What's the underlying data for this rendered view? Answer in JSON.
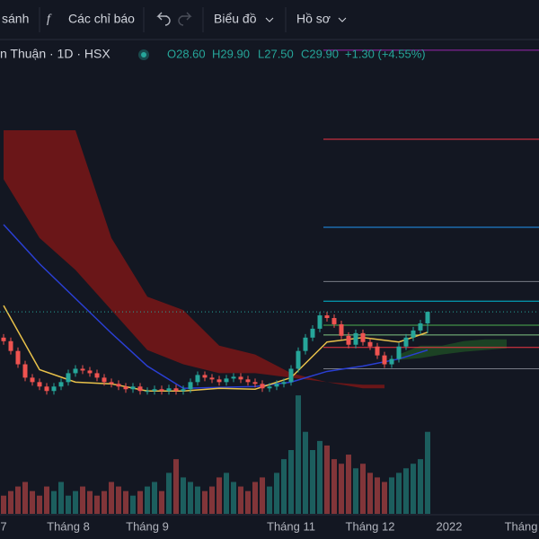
{
  "toolbar": {
    "compare": "sánh",
    "indicators": "Các chỉ báo",
    "layout": "Biểu đồ",
    "profile": "Hồ sơ"
  },
  "chart_data": {
    "type": "candlestick",
    "legend": {
      "symbol": "n Thuận · 1D · HSX",
      "open": "O28.60",
      "high": "H29.90",
      "low": "L27.50",
      "close": "C29.90",
      "change": "+1.30 (+4.55%)"
    },
    "categories": [
      "7",
      null,
      null,
      null,
      null,
      null,
      null,
      null,
      null,
      "Tháng 8",
      null,
      null,
      null,
      null,
      null,
      null,
      null,
      null,
      null,
      null,
      "Tháng 9",
      null,
      null,
      null,
      null,
      null,
      null,
      null,
      null,
      null,
      null,
      null,
      null,
      null,
      null,
      null,
      null,
      null,
      null,
      null,
      "Tháng 11",
      null,
      null,
      null,
      null,
      null,
      null,
      null,
      null,
      null,
      null,
      "Tháng 12",
      null,
      null,
      null,
      null,
      null,
      null,
      null,
      null,
      null,
      null,
      "2022",
      null,
      null,
      null,
      null,
      null,
      null,
      null,
      null,
      null,
      "Tháng"
    ],
    "open": [
      27,
      26.6,
      25.5,
      24,
      22.5,
      22,
      21.5,
      21,
      21.5,
      22,
      23,
      23.5,
      23.3,
      23,
      22.5,
      22,
      21.8,
      21.5,
      21.2,
      21.5,
      21,
      21,
      21.2,
      21,
      21.3,
      21,
      21.2,
      22,
      22.8,
      22.5,
      22.3,
      22,
      22.4,
      22.6,
      22.3,
      22,
      21.8,
      21.3,
      21.5,
      21.8,
      22,
      23.5,
      25.5,
      27,
      28,
      29.5,
      29.2,
      28.5,
      27.2,
      26.2,
      27.5,
      26.5,
      26,
      25,
      24,
      24.6,
      26,
      27,
      27.8,
      28.6,
      null,
      null,
      null,
      null,
      null,
      null,
      null,
      null,
      null,
      null,
      null,
      null,
      null
    ],
    "high": [
      27.4,
      27,
      25.9,
      24.4,
      22.9,
      22.4,
      21.9,
      21.9,
      22.4,
      23.4,
      23.9,
      23.9,
      23.7,
      23.4,
      22.9,
      22.4,
      22.2,
      21.9,
      21.9,
      21.9,
      21.4,
      21.6,
      21.6,
      21.7,
      21.7,
      21.6,
      22.4,
      23.2,
      23.2,
      22.9,
      22.7,
      22.8,
      23,
      23,
      22.7,
      22.4,
      22.2,
      21.9,
      22.2,
      22.4,
      23.9,
      25.9,
      27.4,
      28.4,
      29.9,
      29.9,
      29.6,
      28.9,
      27.6,
      27.9,
      27.9,
      26.9,
      26.4,
      25.4,
      25,
      26.4,
      27.4,
      28.2,
      29,
      29.9,
      null,
      null,
      null,
      null,
      null,
      null,
      null,
      null,
      null,
      null,
      null,
      null,
      null
    ],
    "low": [
      26.2,
      25.1,
      23.6,
      22.1,
      21.6,
      21.1,
      20.6,
      20.6,
      21.1,
      21.6,
      22.6,
      22.9,
      22.6,
      22.1,
      21.6,
      21.4,
      21.1,
      20.8,
      20.8,
      20.6,
      20.6,
      20.6,
      20.6,
      20.6,
      20.6,
      20.6,
      20.8,
      21.6,
      22.1,
      21.9,
      21.6,
      21.6,
      22,
      21.9,
      21.6,
      21.4,
      20.9,
      20.9,
      21.1,
      21.4,
      21.6,
      23.1,
      25.1,
      26.6,
      27.6,
      28.8,
      28.1,
      26.8,
      25.8,
      25.8,
      26.1,
      25.6,
      24.6,
      23.6,
      23.6,
      24.2,
      25.6,
      26.6,
      27.4,
      27.5,
      null,
      null,
      null,
      null,
      null,
      null,
      null,
      null,
      null,
      null,
      null,
      null,
      null
    ],
    "close": [
      26.6,
      25.5,
      24,
      22.5,
      22,
      21.5,
      21,
      21.5,
      22,
      23,
      23.5,
      23.3,
      23,
      22.5,
      22,
      21.8,
      21.5,
      21.2,
      21.5,
      21,
      21,
      21.2,
      21,
      21.3,
      21,
      21.2,
      22,
      22.8,
      22.5,
      22.3,
      22,
      22.4,
      22.6,
      22.3,
      22,
      21.8,
      21.3,
      21.5,
      21.8,
      22,
      23.5,
      25.5,
      27,
      28,
      29.5,
      29.2,
      28.5,
      27.2,
      26.2,
      27.5,
      26.5,
      26,
      25,
      24,
      24.6,
      26,
      27,
      27.8,
      28.6,
      29.9,
      null,
      null,
      null,
      null,
      null,
      null,
      null,
      null,
      null,
      null,
      null,
      null,
      null
    ],
    "up_color": "#26a69a",
    "down_color": "#ef5350",
    "ylim": [
      18.5,
      60.4
    ],
    "volume": {
      "ylim": [
        0,
        140
      ],
      "values": [
        20,
        25,
        30,
        35,
        25,
        20,
        30,
        25,
        35,
        20,
        25,
        30,
        25,
        20,
        25,
        35,
        30,
        25,
        20,
        25,
        30,
        35,
        25,
        45,
        60,
        40,
        35,
        30,
        25,
        30,
        40,
        45,
        35,
        30,
        25,
        35,
        40,
        30,
        45,
        60,
        70,
        130,
        90,
        70,
        80,
        75,
        60,
        55,
        65,
        50,
        55,
        45,
        40,
        35,
        40,
        45,
        50,
        55,
        60,
        90,
        null,
        null,
        null,
        null,
        null,
        null,
        null,
        null,
        null,
        null,
        null,
        null,
        null
      ]
    },
    "clouds": [
      {
        "color": "#7a1616",
        "x": [
          0,
          5,
          10,
          15,
          20,
          25,
          30,
          35,
          40,
          45,
          50,
          53
        ],
        "upper": [
          50.3,
          50.3,
          50.3,
          38.2,
          31.6,
          30.1,
          26.1,
          25.1,
          23.0,
          22.0,
          21.7,
          21.7
        ],
        "lower": [
          44.8,
          38.2,
          34.6,
          30.1,
          25.6,
          24.0,
          23.0,
          23.0,
          22.5,
          22.0,
          21.3,
          21.3
        ]
      },
      {
        "color": "#1e4a24",
        "x": [
          55,
          58,
          61,
          64,
          67,
          70
        ],
        "upper": [
          25.1,
          26.1,
          26.1,
          26.6,
          26.8,
          26.8
        ],
        "lower": [
          24.5,
          24.7,
          25.1,
          25.4,
          25.6,
          25.8
        ]
      }
    ],
    "moving_averages": [
      {
        "color": "#2a3fd4",
        "x": [
          0,
          5,
          10,
          15,
          20,
          25,
          30,
          35,
          40,
          45,
          50,
          55,
          59
        ],
        "values": [
          39.7,
          35.3,
          31.4,
          27.5,
          23.8,
          21.3,
          21.4,
          21.5,
          22.0,
          23.2,
          23.8,
          24.6,
          25.6
        ]
      },
      {
        "color": "#e8c14a",
        "x": [
          0,
          5,
          10,
          15,
          20,
          25,
          30,
          35,
          40,
          45,
          50,
          55,
          59
        ],
        "values": [
          30.6,
          23.4,
          22.0,
          21.8,
          21.0,
          21.0,
          21.3,
          21.2,
          22.5,
          26.5,
          27.0,
          26.5,
          27.6
        ]
      }
    ],
    "levels": [
      {
        "value": 59.3,
        "color": "#9c27b0"
      },
      {
        "value": 49.3,
        "color": "#f23645"
      },
      {
        "value": 39.4,
        "color": "#2196f3"
      },
      {
        "value": 33.3,
        "color": "#787b86"
      },
      {
        "value": 31.1,
        "color": "#00bcd4"
      },
      {
        "value": 28.4,
        "color": "#4caf50"
      },
      {
        "value": 27.3,
        "color": "#81c784"
      },
      {
        "value": 25.9,
        "color": "#f23645"
      },
      {
        "value": 23.5,
        "color": "#787b86"
      }
    ]
  }
}
